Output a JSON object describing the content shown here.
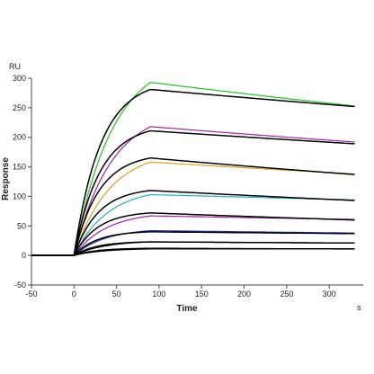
{
  "chart_data": {
    "type": "line",
    "xlabel": "Time",
    "ylabel": "Response",
    "y_unit": "RU",
    "x_unit": "s",
    "xlim": [
      -50,
      340
    ],
    "ylim": [
      -50,
      300
    ],
    "x_ticks": [
      -50,
      0,
      50,
      100,
      150,
      200,
      250,
      300
    ],
    "y_ticks": [
      -50,
      0,
      50,
      100,
      150,
      200,
      250,
      300
    ],
    "x_tick_labels": [
      "-50",
      "0",
      "50",
      "100",
      "150",
      "200",
      "250",
      "300"
    ],
    "y_tick_labels": [
      "-50",
      "0",
      "50",
      "100",
      "150",
      "200",
      "250",
      "300"
    ],
    "grid": false,
    "legend": "none",
    "association_start_s": 0,
    "dissociation_start_s": 90,
    "end_s": 330,
    "fit_color": "#000000",
    "series": [
      {
        "color": "#22c322",
        "peak": 293,
        "end": 253,
        "fit_peak": 281,
        "fit_end": 252
      },
      {
        "color": "#a020a0",
        "peak": 218,
        "end": 192,
        "fit_peak": 211,
        "fit_end": 189
      },
      {
        "color": "#e0a020",
        "peak": 158,
        "end": 138,
        "fit_peak": 165,
        "fit_end": 137
      },
      {
        "color": "#20b0c0",
        "peak": 103,
        "end": 94,
        "fit_peak": 110,
        "fit_end": 93
      },
      {
        "color": "#a020a0",
        "peak": 67,
        "end": 61,
        "fit_peak": 72,
        "fit_end": 60
      },
      {
        "color": "#2030c0",
        "peak": 42,
        "end": 38,
        "fit_peak": 40,
        "fit_end": 37
      },
      {
        "color": "#000000",
        "peak": 23,
        "end": 21,
        "fit_peak": 23,
        "fit_end": 21
      },
      {
        "color": "#000000",
        "peak": 11,
        "end": 11,
        "fit_peak": 12,
        "fit_end": 11
      }
    ]
  }
}
